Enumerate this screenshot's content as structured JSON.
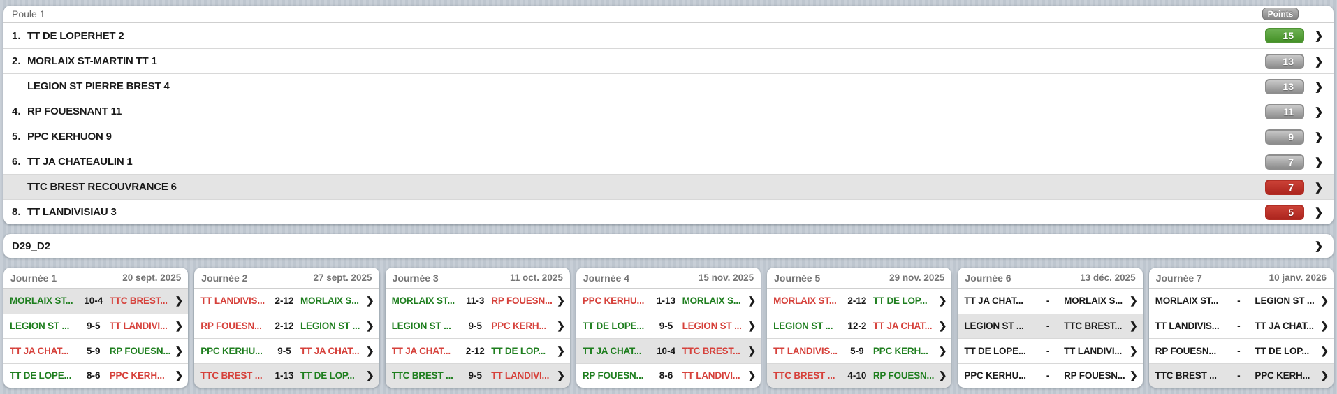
{
  "theme": {
    "background": "#c3cad3",
    "card": "#ffffff",
    "win_text": "#1e7e1e",
    "loss_text": "#d6413b",
    "badge_green": "#459127",
    "badge_red": "#b12d24",
    "badge_gray": "#8c8c8c",
    "highlight_row": "#e4e4e4"
  },
  "standings": {
    "title": "Poule 1",
    "points_label": "Points",
    "rows": [
      {
        "rank": "1.",
        "team": "TT DE LOPERHET 2",
        "points": "15",
        "badge": "green",
        "highlighted": false
      },
      {
        "rank": "2.",
        "team": "MORLAIX ST-MARTIN TT 1",
        "points": "13",
        "badge": "gray",
        "highlighted": false
      },
      {
        "rank": "",
        "team": "LEGION ST PIERRE BREST 4",
        "points": "13",
        "badge": "gray",
        "highlighted": false
      },
      {
        "rank": "4.",
        "team": "RP FOUESNANT 11",
        "points": "11",
        "badge": "gray",
        "highlighted": false
      },
      {
        "rank": "5.",
        "team": "PPC KERHUON 9",
        "points": "9",
        "badge": "gray",
        "highlighted": false
      },
      {
        "rank": "6.",
        "team": "TT JA CHATEAULIN 1",
        "points": "7",
        "badge": "gray",
        "highlighted": false
      },
      {
        "rank": "",
        "team": "TTC BREST RECOUVRANCE 6",
        "points": "7",
        "badge": "red",
        "highlighted": true
      },
      {
        "rank": "8.",
        "team": "TT LANDIVISIAU 3",
        "points": "5",
        "badge": "red",
        "highlighted": false
      }
    ]
  },
  "division": {
    "label": "D29_D2"
  },
  "matchdays": [
    {
      "title": "Journée 1",
      "date": "20 sept. 2025",
      "matches": [
        {
          "home": "MORLAIX ST...",
          "score": "10-4",
          "away": "TTC BREST...",
          "home_result": "win",
          "away_result": "loss",
          "highlighted": true
        },
        {
          "home": "LEGION ST ...",
          "score": "9-5",
          "away": "TT LANDIVI...",
          "home_result": "win",
          "away_result": "loss",
          "highlighted": false
        },
        {
          "home": "TT JA CHAT...",
          "score": "5-9",
          "away": "RP FOUESN...",
          "home_result": "loss",
          "away_result": "win",
          "highlighted": false
        },
        {
          "home": "TT DE LOPE...",
          "score": "8-6",
          "away": "PPC KERH...",
          "home_result": "win",
          "away_result": "loss",
          "highlighted": false
        }
      ]
    },
    {
      "title": "Journée 2",
      "date": "27 sept. 2025",
      "matches": [
        {
          "home": "TT LANDIVIS...",
          "score": "2-12",
          "away": "MORLAIX S...",
          "home_result": "loss",
          "away_result": "win",
          "highlighted": false
        },
        {
          "home": "RP FOUESN...",
          "score": "2-12",
          "away": "LEGION ST ...",
          "home_result": "loss",
          "away_result": "win",
          "highlighted": false
        },
        {
          "home": "PPC KERHU...",
          "score": "9-5",
          "away": "TT JA CHAT...",
          "home_result": "win",
          "away_result": "loss",
          "highlighted": false
        },
        {
          "home": "TTC BREST ...",
          "score": "1-13",
          "away": "TT DE LOP...",
          "home_result": "loss",
          "away_result": "win",
          "highlighted": true
        }
      ]
    },
    {
      "title": "Journée 3",
      "date": "11 oct. 2025",
      "matches": [
        {
          "home": "MORLAIX ST...",
          "score": "11-3",
          "away": "RP FOUESN...",
          "home_result": "win",
          "away_result": "loss",
          "highlighted": false
        },
        {
          "home": "LEGION ST ...",
          "score": "9-5",
          "away": "PPC KERH...",
          "home_result": "win",
          "away_result": "loss",
          "highlighted": false
        },
        {
          "home": "TT JA CHAT...",
          "score": "2-12",
          "away": "TT DE LOP...",
          "home_result": "loss",
          "away_result": "win",
          "highlighted": false
        },
        {
          "home": "TTC BREST ...",
          "score": "9-5",
          "away": "TT LANDIVI...",
          "home_result": "win",
          "away_result": "loss",
          "highlighted": true
        }
      ]
    },
    {
      "title": "Journée 4",
      "date": "15 nov. 2025",
      "matches": [
        {
          "home": "PPC KERHU...",
          "score": "1-13",
          "away": "MORLAIX S...",
          "home_result": "loss",
          "away_result": "win",
          "highlighted": false
        },
        {
          "home": "TT DE LOPE...",
          "score": "9-5",
          "away": "LEGION ST ...",
          "home_result": "win",
          "away_result": "loss",
          "highlighted": false
        },
        {
          "home": "TT JA CHAT...",
          "score": "10-4",
          "away": "TTC BREST...",
          "home_result": "win",
          "away_result": "loss",
          "highlighted": true
        },
        {
          "home": "RP FOUESN...",
          "score": "8-6",
          "away": "TT LANDIVI...",
          "home_result": "win",
          "away_result": "loss",
          "highlighted": false
        }
      ]
    },
    {
      "title": "Journée 5",
      "date": "29 nov. 2025",
      "matches": [
        {
          "home": "MORLAIX ST...",
          "score": "2-12",
          "away": "TT DE LOP...",
          "home_result": "loss",
          "away_result": "win",
          "highlighted": false
        },
        {
          "home": "LEGION ST ...",
          "score": "12-2",
          "away": "TT JA CHAT...",
          "home_result": "win",
          "away_result": "loss",
          "highlighted": false
        },
        {
          "home": "TT LANDIVIS...",
          "score": "5-9",
          "away": "PPC KERH...",
          "home_result": "loss",
          "away_result": "win",
          "highlighted": false
        },
        {
          "home": "TTC BREST ...",
          "score": "4-10",
          "away": "RP FOUESN...",
          "home_result": "loss",
          "away_result": "win",
          "highlighted": true
        }
      ]
    },
    {
      "title": "Journée 6",
      "date": "13 déc. 2025",
      "matches": [
        {
          "home": "TT JA CHAT...",
          "score": "-",
          "away": "MORLAIX S...",
          "home_result": "none",
          "away_result": "none",
          "highlighted": false
        },
        {
          "home": "LEGION ST ...",
          "score": "-",
          "away": "TTC BREST...",
          "home_result": "none",
          "away_result": "none",
          "highlighted": true
        },
        {
          "home": "TT DE LOPE...",
          "score": "-",
          "away": "TT LANDIVI...",
          "home_result": "none",
          "away_result": "none",
          "highlighted": false
        },
        {
          "home": "PPC KERHU...",
          "score": "-",
          "away": "RP FOUESN...",
          "home_result": "none",
          "away_result": "none",
          "highlighted": false
        }
      ]
    },
    {
      "title": "Journée 7",
      "date": "10 janv. 2026",
      "matches": [
        {
          "home": "MORLAIX ST...",
          "score": "-",
          "away": "LEGION ST ...",
          "home_result": "none",
          "away_result": "none",
          "highlighted": false
        },
        {
          "home": "TT LANDIVIS...",
          "score": "-",
          "away": "TT JA CHAT...",
          "home_result": "none",
          "away_result": "none",
          "highlighted": false
        },
        {
          "home": "RP FOUESN...",
          "score": "-",
          "away": "TT DE LOP...",
          "home_result": "none",
          "away_result": "none",
          "highlighted": false
        },
        {
          "home": "TTC BREST ...",
          "score": "-",
          "away": "PPC KERH...",
          "home_result": "none",
          "away_result": "none",
          "highlighted": true
        }
      ]
    }
  ],
  "icons": {
    "chevron": "❯"
  }
}
